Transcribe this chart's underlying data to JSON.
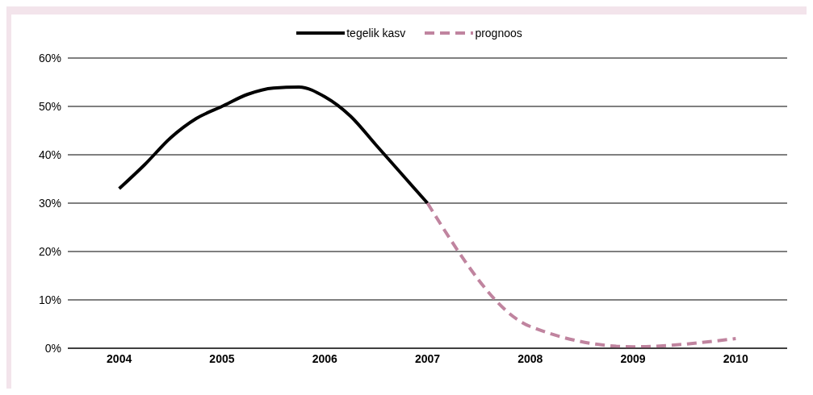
{
  "chart_data": {
    "type": "line",
    "xlim": [
      2003.5,
      2010.5
    ],
    "xticks": [
      2004,
      2005,
      2006,
      2007,
      2008,
      2009,
      2010
    ],
    "ylim": [
      0,
      60
    ],
    "yticks": [
      {
        "value": 0,
        "label": "0%"
      },
      {
        "value": 10,
        "label": "10%"
      },
      {
        "value": 20,
        "label": "20%"
      },
      {
        "value": 30,
        "label": "30%"
      },
      {
        "value": 40,
        "label": "40%"
      },
      {
        "value": 50,
        "label": "50%"
      },
      {
        "value": 60,
        "label": "60%"
      }
    ],
    "grid": "y",
    "legend": "top",
    "marker": "none",
    "series": [
      {
        "name": "tegelik kasv",
        "color": "#000000",
        "line_style": "solid",
        "x": [
          2004,
          2004.25,
          2004.5,
          2004.75,
          2005,
          2005.25,
          2005.5,
          2005.75,
          2006,
          2006.25,
          2006.5,
          2006.75,
          2007
        ],
        "values": [
          33,
          38,
          43.5,
          47.5,
          50,
          52.5,
          53.8,
          54,
          52,
          48,
          42,
          36,
          30
        ]
      },
      {
        "name": "prognoos",
        "color": "#c0849f",
        "line_style": "dashed",
        "x": [
          2007,
          2008,
          2009,
          2010
        ],
        "values": [
          30,
          4.5,
          0.3,
          2
        ]
      }
    ]
  }
}
